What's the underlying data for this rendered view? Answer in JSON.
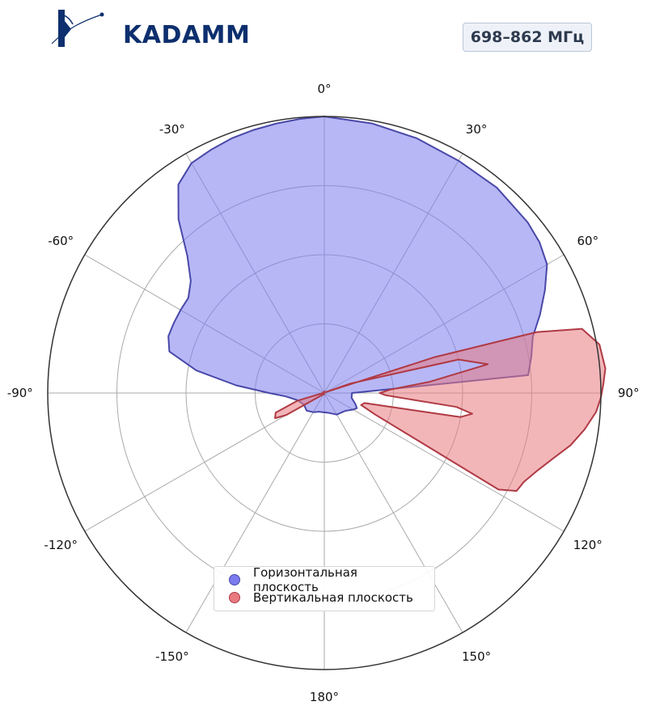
{
  "brand": {
    "logo_text": "KADAMM",
    "logo_color": "#0d2f6e"
  },
  "badge": {
    "text": "698–862 МГц"
  },
  "chart_data": {
    "type": "polar-area",
    "title": "",
    "angle_unit": "deg",
    "angle_zero": "top",
    "angle_direction": "clockwise",
    "radial_range": [
      0,
      1
    ],
    "radial_ticks": [
      0.25,
      0.5,
      0.75
    ],
    "angular_ticks": [
      0,
      30,
      60,
      90,
      120,
      150,
      180,
      -150,
      -120,
      -90,
      -60,
      -30
    ],
    "angular_tick_labels": [
      "0°",
      "30°",
      "60°",
      "90°",
      "120°",
      "150°",
      "180°",
      "-150°",
      "-120°",
      "-90°",
      "-60°",
      "-30°"
    ],
    "grid": true,
    "legend_position": "bottom-center",
    "series": [
      {
        "name": "Горизонтальная плоскость",
        "fill": "#7b7bef",
        "stroke": "#4848a8",
        "points": [
          [
            -180,
            0.07
          ],
          [
            -175,
            0.07
          ],
          [
            -165,
            0.07
          ],
          [
            -150,
            0.08
          ],
          [
            -135,
            0.09
          ],
          [
            -120,
            0.085
          ],
          [
            -105,
            0.1
          ],
          [
            -95,
            0.14
          ],
          [
            -90,
            0.2
          ],
          [
            -85,
            0.32
          ],
          [
            -80,
            0.47
          ],
          [
            -75,
            0.58
          ],
          [
            -70,
            0.6
          ],
          [
            -65,
            0.6
          ],
          [
            -60,
            0.6
          ],
          [
            -55,
            0.6
          ],
          [
            -50,
            0.63
          ],
          [
            -45,
            0.7
          ],
          [
            -40,
            0.82
          ],
          [
            -35,
            0.92
          ],
          [
            -30,
            0.96
          ],
          [
            -25,
            0.97
          ],
          [
            -20,
            0.98
          ],
          [
            -15,
            0.985
          ],
          [
            -10,
            0.99
          ],
          [
            -5,
            0.995
          ],
          [
            0,
            1.0
          ],
          [
            10,
            0.99
          ],
          [
            20,
            0.98
          ],
          [
            30,
            0.97
          ],
          [
            40,
            0.97
          ],
          [
            50,
            0.96
          ],
          [
            55,
            0.95
          ],
          [
            60,
            0.93
          ],
          [
            65,
            0.88
          ],
          [
            70,
            0.83
          ],
          [
            75,
            0.78
          ],
          [
            80,
            0.76
          ],
          [
            85,
            0.74
          ],
          [
            90,
            0.1
          ],
          [
            100,
            0.1
          ],
          [
            110,
            0.12
          ],
          [
            115,
            0.13
          ],
          [
            120,
            0.12
          ],
          [
            130,
            0.1
          ],
          [
            150,
            0.09
          ],
          [
            165,
            0.075
          ],
          [
            180,
            0.07
          ]
        ]
      },
      {
        "name": "Вертикальная плоскость",
        "fill": "#e87a80",
        "stroke": "#b03a44",
        "points": [
          [
            -180,
            0.005
          ],
          [
            -150,
            0.005
          ],
          [
            -120,
            0.16
          ],
          [
            -117,
            0.2
          ],
          [
            -112,
            0.19
          ],
          [
            -106,
            0.1
          ],
          [
            -90,
            0.005
          ],
          [
            0,
            0.005
          ],
          [
            60,
            0.005
          ],
          [
            72,
            0.42
          ],
          [
            74,
            0.8
          ],
          [
            76,
            0.96
          ],
          [
            80,
            1.01
          ],
          [
            85,
            1.02
          ],
          [
            88,
            1.01
          ],
          [
            91,
            1.0
          ],
          [
            94,
            0.985
          ],
          [
            98,
            0.95
          ],
          [
            102,
            0.91
          ],
          [
            106,
            0.86
          ],
          [
            110,
            0.82
          ],
          [
            114,
            0.79
          ],
          [
            117,
            0.78
          ],
          [
            119,
            0.72
          ],
          [
            113,
            0.2
          ],
          [
            108,
            0.14
          ],
          [
            104,
            0.15
          ],
          [
            101,
            0.32
          ],
          [
            100,
            0.5
          ],
          [
            98,
            0.54
          ],
          [
            96,
            0.48
          ],
          [
            94,
            0.3
          ],
          [
            92,
            0.22
          ],
          [
            90,
            0.2
          ],
          [
            87,
            0.24
          ],
          [
            84,
            0.38
          ],
          [
            80,
            0.6
          ],
          [
            76,
            0.5
          ],
          [
            70,
            0.1
          ],
          [
            60,
            0.005
          ],
          [
            0,
            0.005
          ],
          [
            -60,
            0.005
          ],
          [
            -90,
            0.005
          ],
          [
            -180,
            0.005
          ]
        ]
      }
    ]
  },
  "chart_style": {
    "outer_circle_color": "#333333",
    "grid_color": "#aaaaaa"
  }
}
